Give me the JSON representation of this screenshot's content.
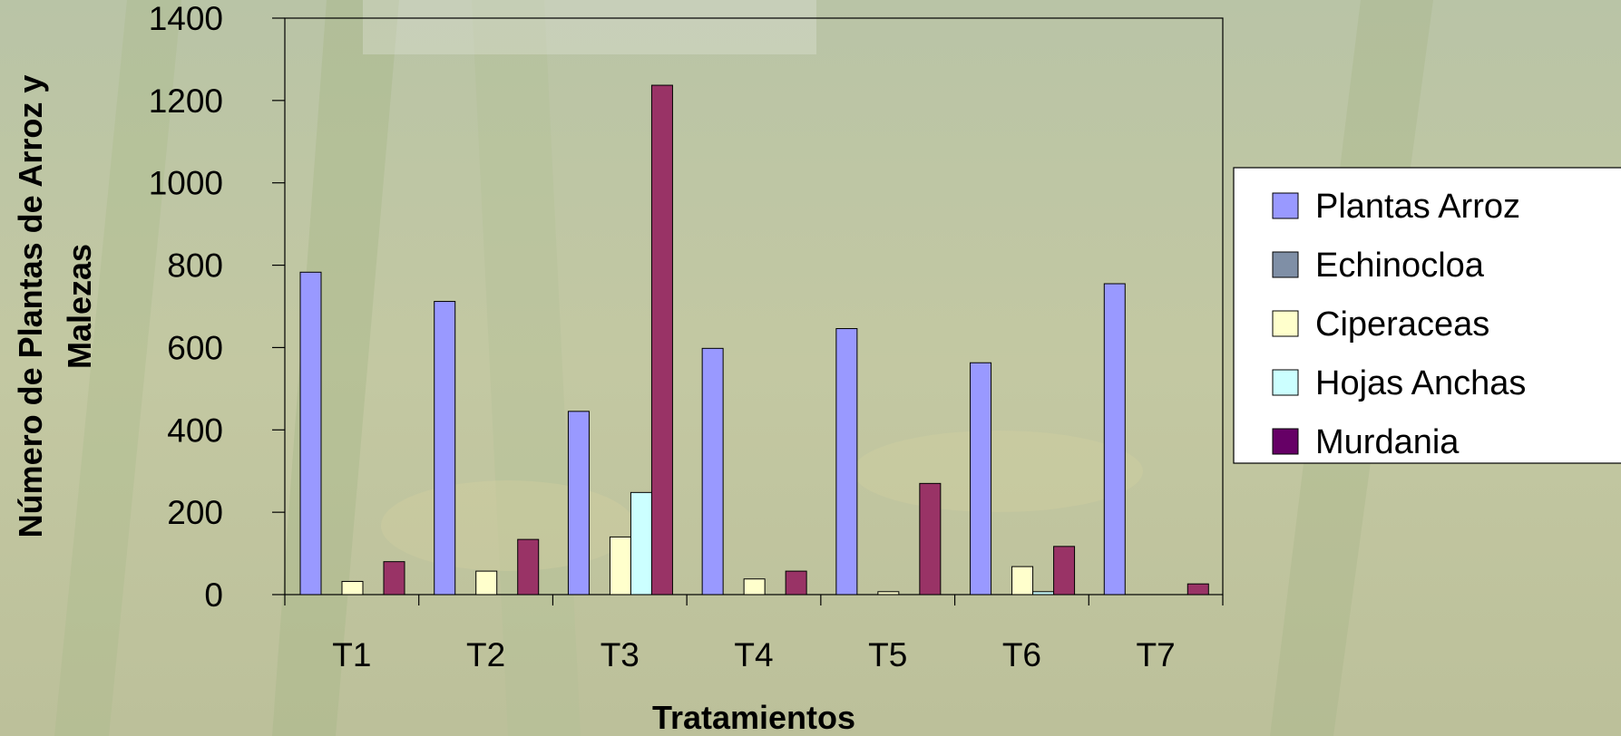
{
  "chart_data": {
    "type": "bar",
    "title": "",
    "xlabel": "Tratamientos",
    "ylabel": [
      "Número de Plantas de Arroz y",
      "Malezas"
    ],
    "categories": [
      "T1",
      "T2",
      "T3",
      "T4",
      "T5",
      "T6",
      "T7"
    ],
    "ylim": [
      0,
      1400
    ],
    "yticks": [
      0,
      200,
      400,
      600,
      800,
      1000,
      1200,
      1400
    ],
    "legend_position": "right",
    "grid": false,
    "series": [
      {
        "name": "Plantas Arroz",
        "color": "#9999ff",
        "values": [
          783,
          712,
          445,
          598,
          646,
          563,
          755
        ]
      },
      {
        "name": "Echinocloa",
        "color": "#7f8fa6",
        "values": [
          0,
          0,
          0,
          0,
          0,
          0,
          0
        ]
      },
      {
        "name": "Ciperaceas",
        "color": "#ffffcc",
        "values": [
          32,
          57,
          140,
          38,
          7,
          68,
          0
        ]
      },
      {
        "name": "Hojas Anchas",
        "color": "#ccffff",
        "values": [
          0,
          0,
          248,
          0,
          0,
          7,
          0
        ]
      },
      {
        "name": "Murdania",
        "color": "#993366",
        "legend_color": "#660066",
        "values": [
          80,
          134,
          1237,
          57,
          270,
          117,
          26
        ]
      }
    ]
  }
}
